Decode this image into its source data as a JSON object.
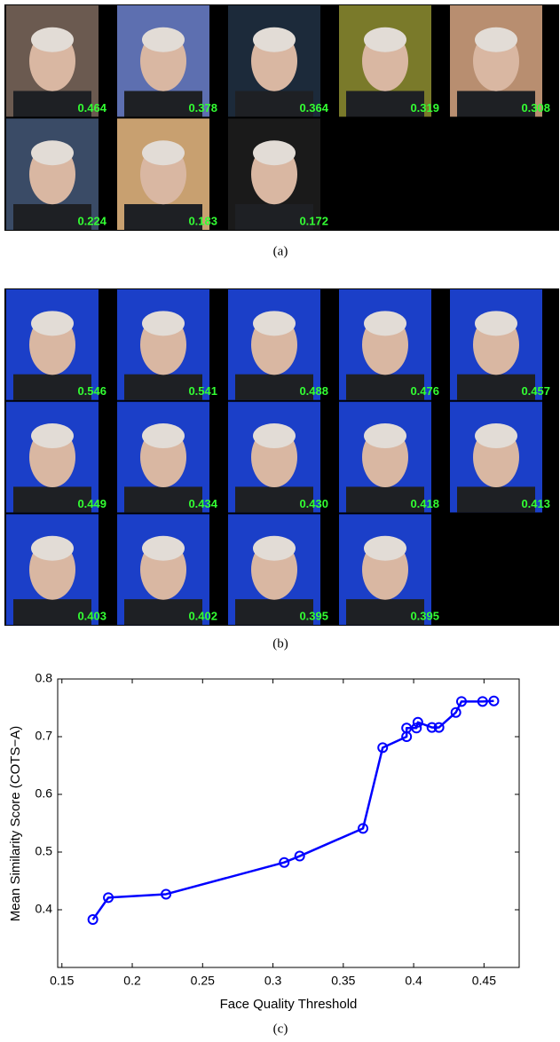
{
  "panel_a": {
    "scores": [
      "0.464",
      "0.378",
      "0.364",
      "0.319",
      "0.308",
      "0.224",
      "0.183",
      "0.172"
    ],
    "caption": "(a)"
  },
  "panel_b": {
    "scores": [
      "0.546",
      "0.541",
      "0.488",
      "0.476",
      "0.457",
      "0.449",
      "0.434",
      "0.430",
      "0.418",
      "0.413",
      "0.403",
      "0.402",
      "0.395",
      "0.395"
    ],
    "caption": "(b)"
  },
  "chart_data": {
    "type": "line",
    "caption": "(c)",
    "x_label": "Face Quality Threshold",
    "y_label": "Mean Similarity Score (COTS−A)",
    "x": [
      0.172,
      0.183,
      0.224,
      0.308,
      0.319,
      0.364,
      0.378,
      0.395,
      0.395,
      0.402,
      0.403,
      0.413,
      0.418,
      0.43,
      0.434,
      0.449,
      0.457
    ],
    "series": [
      {
        "color": "#0000ff",
        "values": [
          0.383,
          0.421,
          0.427,
          0.482,
          0.493,
          0.541,
          0.681,
          0.7,
          0.715,
          0.715,
          0.725,
          0.716,
          0.716,
          0.742,
          0.761,
          0.761,
          0.762
        ]
      }
    ],
    "xlim": [
      0.147,
      0.475
    ],
    "ylim": [
      0.3,
      0.8
    ],
    "xticks": [
      0.15,
      0.2,
      0.25,
      0.3,
      0.35,
      0.4,
      0.45
    ],
    "yticks": [
      0.4,
      0.5,
      0.6,
      0.7,
      0.8
    ],
    "grid": false,
    "marker": "circle"
  }
}
